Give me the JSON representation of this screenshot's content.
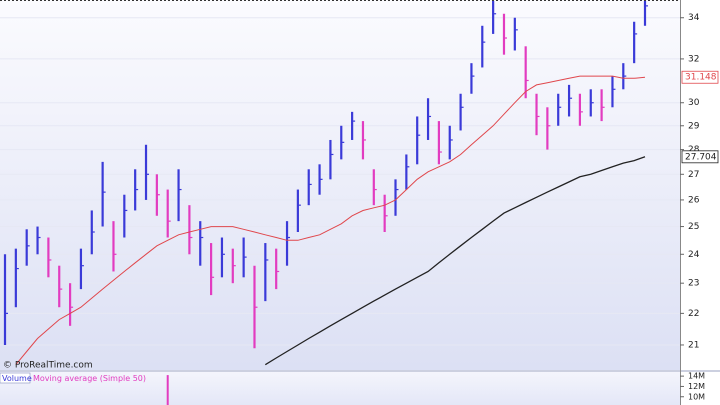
{
  "chart_data": {
    "type": "ohlc",
    "watermark": "© ProRealTime.com",
    "up_color": "#3a3ad8",
    "down_color": "#e23cc0",
    "log_scale": true,
    "grid": true,
    "ylim": [
      20.24,
      34.9
    ],
    "yticks": [
      21,
      22,
      23,
      24,
      25,
      26,
      27,
      28,
      29,
      30,
      32,
      34
    ],
    "close": [
      22.0,
      23.5,
      24.3,
      24.6,
      23.8,
      22.8,
      22.2,
      23.6,
      24.8,
      26.3,
      24.0,
      25.6,
      26.4,
      27.0,
      26.2,
      25.2,
      26.4,
      24.6,
      24.6,
      23.2,
      24.0,
      23.6,
      23.9,
      22.2,
      23.8,
      23.4,
      24.6,
      25.8,
      26.6,
      26.8,
      27.8,
      28.3,
      29.2,
      28.4,
      26.4,
      25.4,
      26.4,
      27.3,
      28.6,
      29.4,
      27.9,
      28.4,
      29.8,
      31.2,
      32.8,
      34.2,
      33.0,
      33.4,
      31.0,
      29.4,
      29.0,
      29.8,
      30.2,
      29.6,
      30.0,
      29.8,
      30.6,
      31.2,
      33.2,
      34.6
    ],
    "high": [
      24.0,
      24.2,
      24.9,
      25.0,
      24.6,
      23.6,
      23.0,
      24.2,
      25.6,
      27.5,
      25.2,
      26.2,
      27.2,
      28.2,
      27.0,
      26.4,
      27.2,
      25.8,
      25.2,
      24.4,
      24.6,
      24.2,
      24.6,
      23.6,
      24.4,
      24.2,
      25.2,
      26.4,
      27.2,
      27.4,
      28.4,
      29.0,
      29.6,
      29.2,
      27.2,
      26.2,
      26.8,
      27.8,
      29.4,
      30.2,
      29.2,
      29.0,
      30.4,
      31.8,
      33.6,
      34.85,
      34.2,
      34.0,
      32.6,
      30.4,
      29.8,
      30.4,
      30.8,
      30.4,
      30.6,
      30.6,
      31.2,
      31.8,
      33.8,
      34.85
    ],
    "low": [
      21.0,
      22.2,
      23.6,
      24.0,
      23.2,
      22.2,
      21.6,
      22.8,
      24.0,
      25.0,
      23.4,
      24.6,
      25.6,
      26.0,
      25.4,
      24.6,
      25.2,
      24.0,
      23.6,
      22.6,
      23.2,
      23.0,
      23.2,
      20.9,
      22.4,
      22.8,
      23.6,
      24.8,
      25.8,
      26.2,
      26.8,
      27.6,
      28.4,
      27.6,
      25.8,
      24.8,
      25.4,
      26.4,
      27.4,
      28.4,
      27.4,
      27.6,
      28.8,
      30.4,
      31.6,
      33.2,
      32.2,
      32.4,
      30.2,
      28.6,
      28.0,
      29.0,
      29.4,
      29.0,
      29.4,
      29.2,
      29.8,
      30.6,
      31.8,
      33.6
    ],
    "moving_averages": [
      {
        "color": "#e0474c",
        "values": [
          null,
          20.4,
          20.8,
          21.2,
          21.5,
          21.8,
          22.0,
          22.2,
          22.5,
          22.8,
          23.1,
          23.4,
          23.7,
          24.0,
          24.3,
          24.5,
          24.7,
          24.8,
          24.9,
          25.0,
          25.0,
          25.0,
          24.9,
          24.8,
          24.7,
          24.6,
          24.5,
          24.5,
          24.6,
          24.7,
          24.9,
          25.1,
          25.4,
          25.6,
          25.7,
          25.8,
          26.0,
          26.4,
          26.8,
          27.1,
          27.3,
          27.5,
          27.8,
          28.2,
          28.6,
          29.0,
          29.5,
          30.0,
          30.5,
          30.8,
          30.9,
          31.0,
          31.1,
          31.2,
          31.2,
          31.2,
          31.2,
          31.1,
          31.1,
          31.148
        ]
      },
      {
        "color": "#222222",
        "values": [
          null,
          null,
          null,
          null,
          null,
          null,
          null,
          null,
          null,
          null,
          null,
          null,
          null,
          null,
          null,
          null,
          null,
          null,
          null,
          null,
          null,
          null,
          null,
          null,
          20.4,
          20.6,
          20.8,
          21.0,
          21.2,
          21.4,
          21.6,
          21.8,
          22.0,
          22.2,
          22.4,
          22.6,
          22.8,
          23.0,
          23.2,
          23.4,
          23.7,
          24.0,
          24.3,
          24.6,
          24.9,
          25.2,
          25.5,
          25.7,
          25.9,
          26.1,
          26.3,
          26.5,
          26.7,
          26.9,
          27.0,
          27.15,
          27.3,
          27.45,
          27.55,
          27.704
        ]
      }
    ],
    "volume": {
      "label": "Volume",
      "indicator": "Moving average (Simple 50)",
      "color": "#e23cc0",
      "ylim": [
        8.4,
        14.8
      ],
      "yticks": [
        {
          "value": 14,
          "label": "14M"
        },
        {
          "value": 12,
          "label": "12M"
        },
        {
          "value": 10,
          "label": "10M"
        }
      ],
      "values": [
        null,
        null,
        null,
        null,
        null,
        null,
        null,
        null,
        null,
        null,
        null,
        null,
        null,
        null,
        null,
        14.2,
        null,
        null,
        null,
        null,
        null,
        null,
        null,
        null,
        null,
        null,
        null,
        null,
        null,
        null,
        null,
        null,
        null,
        null,
        null,
        null,
        null,
        null,
        null,
        null,
        null,
        null,
        null,
        null,
        null,
        null,
        null,
        null,
        null,
        null,
        null,
        null,
        null,
        null,
        null,
        null,
        null,
        null,
        null,
        null
      ]
    }
  }
}
